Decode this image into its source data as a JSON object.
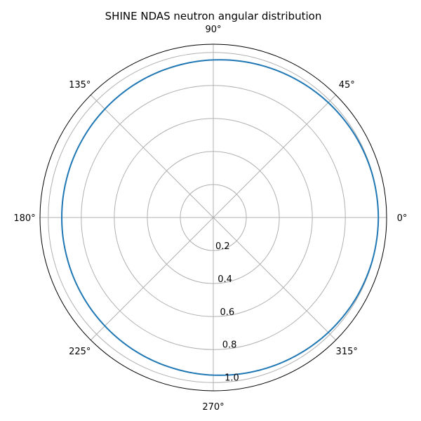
{
  "chart_data": {
    "type": "line",
    "projection": "polar",
    "title": "SHINE NDAS neutron angular distribution",
    "theta_tick_labels": [
      "0°",
      "45°",
      "90°",
      "135°",
      "180°",
      "225°",
      "270°",
      "315°"
    ],
    "theta_ticks_deg": [
      0,
      45,
      90,
      135,
      180,
      225,
      270,
      315
    ],
    "r_ticks": [
      0.2,
      0.4,
      0.6,
      0.8,
      1.0
    ],
    "r_tick_labels": [
      "0.2",
      "0.4",
      "0.6",
      "0.8",
      "1.0"
    ],
    "rlim": [
      0,
      1.05
    ],
    "grid": true,
    "series": [
      {
        "color": "#1f77b4",
        "theta_deg": [
          0,
          15,
          30,
          45,
          60,
          75,
          90,
          105,
          120,
          135,
          150,
          165,
          180,
          195,
          210,
          225,
          240,
          255,
          270,
          285,
          300,
          315,
          330,
          345,
          360
        ],
        "r": [
          1.0,
          0.998,
          0.993,
          0.985,
          0.975,
          0.965,
          0.955,
          0.945,
          0.937,
          0.929,
          0.923,
          0.919,
          0.918,
          0.919,
          0.923,
          0.929,
          0.937,
          0.945,
          0.955,
          0.965,
          0.975,
          0.985,
          0.993,
          0.998,
          1.0
        ]
      }
    ]
  }
}
